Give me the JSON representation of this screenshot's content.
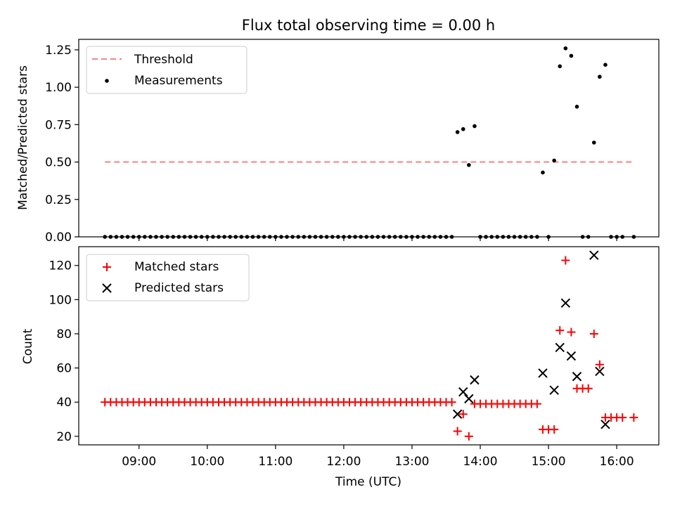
{
  "title": "Flux total observing time = 0.00 h",
  "colors": {
    "threshold": "#ff7f7f",
    "measurement": "#000000",
    "matched": "#ff0000",
    "predicted": "#000000"
  },
  "chart_data": [
    {
      "type": "scatter",
      "panel": "top",
      "ylabel": "Matched/Predicted stars",
      "xlabel": "",
      "ylim": [
        0,
        1.32
      ],
      "yticks": [
        "0.00",
        "0.25",
        "0.50",
        "0.75",
        "1.00",
        "1.25"
      ],
      "ytick_values": [
        0,
        0.25,
        0.5,
        0.75,
        1.0,
        1.25
      ],
      "legend_position": "top-left",
      "legend": [
        "Threshold",
        "Measurements"
      ],
      "threshold": {
        "name": "Threshold",
        "y": 0.5,
        "x_start": "08:30",
        "x_end": "16:15"
      },
      "series": [
        {
          "name": "Measurements",
          "points": [
            [
              "08:30",
              0
            ],
            [
              "08:35",
              0
            ],
            [
              "08:40",
              0
            ],
            [
              "08:45",
              0
            ],
            [
              "08:50",
              0
            ],
            [
              "08:55",
              0
            ],
            [
              "09:00",
              0
            ],
            [
              "09:05",
              0
            ],
            [
              "09:10",
              0
            ],
            [
              "09:15",
              0
            ],
            [
              "09:20",
              0
            ],
            [
              "09:25",
              0
            ],
            [
              "09:30",
              0
            ],
            [
              "09:35",
              0
            ],
            [
              "09:40",
              0
            ],
            [
              "09:45",
              0
            ],
            [
              "09:50",
              0
            ],
            [
              "09:55",
              0
            ],
            [
              "10:00",
              0
            ],
            [
              "10:05",
              0
            ],
            [
              "10:10",
              0
            ],
            [
              "10:15",
              0
            ],
            [
              "10:20",
              0
            ],
            [
              "10:25",
              0
            ],
            [
              "10:30",
              0
            ],
            [
              "10:35",
              0
            ],
            [
              "10:40",
              0
            ],
            [
              "10:45",
              0
            ],
            [
              "10:50",
              0
            ],
            [
              "10:55",
              0
            ],
            [
              "11:00",
              0
            ],
            [
              "11:05",
              0
            ],
            [
              "11:10",
              0
            ],
            [
              "11:15",
              0
            ],
            [
              "11:20",
              0
            ],
            [
              "11:25",
              0
            ],
            [
              "11:30",
              0
            ],
            [
              "11:35",
              0
            ],
            [
              "11:40",
              0
            ],
            [
              "11:45",
              0
            ],
            [
              "11:50",
              0
            ],
            [
              "11:55",
              0
            ],
            [
              "12:00",
              0
            ],
            [
              "12:05",
              0
            ],
            [
              "12:10",
              0
            ],
            [
              "12:15",
              0
            ],
            [
              "12:20",
              0
            ],
            [
              "12:25",
              0
            ],
            [
              "12:30",
              0
            ],
            [
              "12:35",
              0
            ],
            [
              "12:40",
              0
            ],
            [
              "12:45",
              0
            ],
            [
              "12:50",
              0
            ],
            [
              "12:55",
              0
            ],
            [
              "13:00",
              0
            ],
            [
              "13:05",
              0
            ],
            [
              "13:10",
              0
            ],
            [
              "13:15",
              0
            ],
            [
              "13:20",
              0
            ],
            [
              "13:25",
              0
            ],
            [
              "13:30",
              0
            ],
            [
              "13:35",
              0
            ],
            [
              "13:40",
              0.7
            ],
            [
              "13:45",
              0.72
            ],
            [
              "13:50",
              0.48
            ],
            [
              "13:55",
              0.74
            ],
            [
              "14:00",
              0
            ],
            [
              "14:05",
              0
            ],
            [
              "14:10",
              0
            ],
            [
              "14:15",
              0
            ],
            [
              "14:20",
              0
            ],
            [
              "14:25",
              0
            ],
            [
              "14:30",
              0
            ],
            [
              "14:35",
              0
            ],
            [
              "14:40",
              0
            ],
            [
              "14:45",
              0
            ],
            [
              "14:50",
              0
            ],
            [
              "14:55",
              0.43
            ],
            [
              "15:00",
              0
            ],
            [
              "15:05",
              0.51
            ],
            [
              "15:10",
              1.14
            ],
            [
              "15:15",
              1.26
            ],
            [
              "15:20",
              1.21
            ],
            [
              "15:25",
              0.87
            ],
            [
              "15:30",
              0
            ],
            [
              "15:35",
              0
            ],
            [
              "15:40",
              0.63
            ],
            [
              "15:45",
              1.07
            ],
            [
              "15:50",
              1.15
            ],
            [
              "15:55",
              0
            ],
            [
              "16:00",
              0
            ],
            [
              "16:05",
              0
            ],
            [
              "16:15",
              0
            ]
          ]
        }
      ]
    },
    {
      "type": "scatter",
      "panel": "bottom",
      "ylabel": "Count",
      "xlabel": "Time (UTC)",
      "xlim": [
        "08:07",
        "16:37"
      ],
      "xticks": [
        "09:00",
        "10:00",
        "11:00",
        "12:00",
        "13:00",
        "14:00",
        "15:00",
        "16:00"
      ],
      "ylim": [
        15,
        131
      ],
      "yticks": [
        "20",
        "40",
        "60",
        "80",
        "100",
        "120"
      ],
      "ytick_values": [
        20,
        40,
        60,
        80,
        100,
        120
      ],
      "legend_position": "top-left",
      "legend": [
        "Matched stars",
        "Predicted stars"
      ],
      "series": [
        {
          "name": "Matched stars",
          "points": [
            [
              "08:30",
              40
            ],
            [
              "08:35",
              40
            ],
            [
              "08:40",
              40
            ],
            [
              "08:45",
              40
            ],
            [
              "08:50",
              40
            ],
            [
              "08:55",
              40
            ],
            [
              "09:00",
              40
            ],
            [
              "09:05",
              40
            ],
            [
              "09:10",
              40
            ],
            [
              "09:15",
              40
            ],
            [
              "09:20",
              40
            ],
            [
              "09:25",
              40
            ],
            [
              "09:30",
              40
            ],
            [
              "09:35",
              40
            ],
            [
              "09:40",
              40
            ],
            [
              "09:45",
              40
            ],
            [
              "09:50",
              40
            ],
            [
              "09:55",
              40
            ],
            [
              "10:00",
              40
            ],
            [
              "10:05",
              40
            ],
            [
              "10:10",
              40
            ],
            [
              "10:15",
              40
            ],
            [
              "10:20",
              40
            ],
            [
              "10:25",
              40
            ],
            [
              "10:30",
              40
            ],
            [
              "10:35",
              40
            ],
            [
              "10:40",
              40
            ],
            [
              "10:45",
              40
            ],
            [
              "10:50",
              40
            ],
            [
              "10:55",
              40
            ],
            [
              "11:00",
              40
            ],
            [
              "11:05",
              40
            ],
            [
              "11:10",
              40
            ],
            [
              "11:15",
              40
            ],
            [
              "11:20",
              40
            ],
            [
              "11:25",
              40
            ],
            [
              "11:30",
              40
            ],
            [
              "11:35",
              40
            ],
            [
              "11:40",
              40
            ],
            [
              "11:45",
              40
            ],
            [
              "11:50",
              40
            ],
            [
              "11:55",
              40
            ],
            [
              "12:00",
              40
            ],
            [
              "12:05",
              40
            ],
            [
              "12:10",
              40
            ],
            [
              "12:15",
              40
            ],
            [
              "12:20",
              40
            ],
            [
              "12:25",
              40
            ],
            [
              "12:30",
              40
            ],
            [
              "12:35",
              40
            ],
            [
              "12:40",
              40
            ],
            [
              "12:45",
              40
            ],
            [
              "12:50",
              40
            ],
            [
              "12:55",
              40
            ],
            [
              "13:00",
              40
            ],
            [
              "13:05",
              40
            ],
            [
              "13:10",
              40
            ],
            [
              "13:15",
              40
            ],
            [
              "13:20",
              40
            ],
            [
              "13:25",
              40
            ],
            [
              "13:30",
              40
            ],
            [
              "13:35",
              40
            ],
            [
              "13:40",
              23
            ],
            [
              "13:45",
              33
            ],
            [
              "13:50",
              20
            ],
            [
              "13:55",
              39
            ],
            [
              "14:00",
              39
            ],
            [
              "14:05",
              39
            ],
            [
              "14:10",
              39
            ],
            [
              "14:15",
              39
            ],
            [
              "14:20",
              39
            ],
            [
              "14:25",
              39
            ],
            [
              "14:30",
              39
            ],
            [
              "14:35",
              39
            ],
            [
              "14:40",
              39
            ],
            [
              "14:45",
              39
            ],
            [
              "14:50",
              39
            ],
            [
              "14:55",
              24
            ],
            [
              "15:00",
              24
            ],
            [
              "15:05",
              24
            ],
            [
              "15:10",
              82
            ],
            [
              "15:15",
              123
            ],
            [
              "15:20",
              81
            ],
            [
              "15:25",
              48
            ],
            [
              "15:30",
              48
            ],
            [
              "15:35",
              48
            ],
            [
              "15:40",
              80
            ],
            [
              "15:45",
              62
            ],
            [
              "15:50",
              31
            ],
            [
              "15:55",
              31
            ],
            [
              "16:00",
              31
            ],
            [
              "16:05",
              31
            ],
            [
              "16:15",
              31
            ]
          ]
        },
        {
          "name": "Predicted stars",
          "points": [
            [
              "13:40",
              33
            ],
            [
              "13:45",
              46
            ],
            [
              "13:50",
              42
            ],
            [
              "13:55",
              53
            ],
            [
              "14:55",
              57
            ],
            [
              "15:05",
              47
            ],
            [
              "15:10",
              72
            ],
            [
              "15:15",
              98
            ],
            [
              "15:20",
              67
            ],
            [
              "15:25",
              55
            ],
            [
              "15:40",
              126
            ],
            [
              "15:45",
              58
            ],
            [
              "15:50",
              27
            ]
          ]
        }
      ]
    }
  ]
}
